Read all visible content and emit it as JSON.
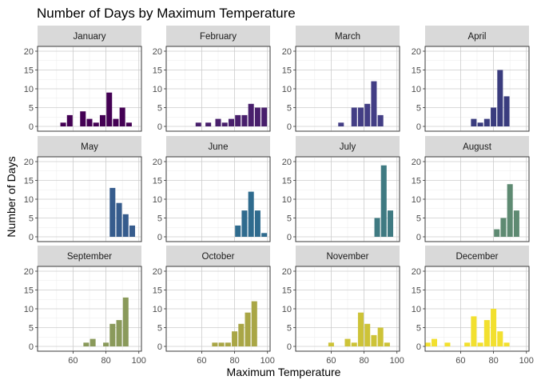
{
  "chart_data": {
    "type": "bar",
    "title": "Number of Days by Maximum Temperature",
    "xlabel": "Maximum Temperature",
    "ylabel": "Number of Days",
    "facet_layout": "4 columns x 3 rows, shared axes",
    "xlim": [
      40,
      100
    ],
    "ylim": [
      0,
      20
    ],
    "x_ticks": [
      60,
      80,
      100
    ],
    "y_ticks": [
      0,
      5,
      10,
      15,
      20
    ],
    "bin_width": 4,
    "grid": true,
    "panels": [
      {
        "label": "January",
        "color": "#440154",
        "bins": [
          {
            "x": 54,
            "value": 1
          },
          {
            "x": 58,
            "value": 3
          },
          {
            "x": 62,
            "value": 0
          },
          {
            "x": 66,
            "value": 4
          },
          {
            "x": 70,
            "value": 2
          },
          {
            "x": 74,
            "value": 1
          },
          {
            "x": 78,
            "value": 3
          },
          {
            "x": 82,
            "value": 9
          },
          {
            "x": 86,
            "value": 2
          },
          {
            "x": 90,
            "value": 5
          },
          {
            "x": 94,
            "value": 1
          }
        ]
      },
      {
        "label": "February",
        "color": "#481F6C",
        "bins": [
          {
            "x": 58,
            "value": 1
          },
          {
            "x": 64,
            "value": 1
          },
          {
            "x": 70,
            "value": 2
          },
          {
            "x": 74,
            "value": 1
          },
          {
            "x": 78,
            "value": 2
          },
          {
            "x": 82,
            "value": 3
          },
          {
            "x": 86,
            "value": 3
          },
          {
            "x": 90,
            "value": 6
          },
          {
            "x": 94,
            "value": 5
          },
          {
            "x": 98,
            "value": 5
          }
        ]
      },
      {
        "label": "March",
        "color": "#433E85",
        "bins": [
          {
            "x": 66,
            "value": 1
          },
          {
            "x": 74,
            "value": 5
          },
          {
            "x": 78,
            "value": 5
          },
          {
            "x": 82,
            "value": 6
          },
          {
            "x": 86,
            "value": 12
          },
          {
            "x": 90,
            "value": 3
          }
        ]
      },
      {
        "label": "April",
        "color": "#3A3C7E",
        "bins": [
          {
            "x": 68,
            "value": 2
          },
          {
            "x": 72,
            "value": 1
          },
          {
            "x": 76,
            "value": 2
          },
          {
            "x": 80,
            "value": 5
          },
          {
            "x": 84,
            "value": 15
          },
          {
            "x": 88,
            "value": 8
          }
        ]
      },
      {
        "label": "May",
        "color": "#365C8D",
        "bins": [
          {
            "x": 84,
            "value": 13
          },
          {
            "x": 88,
            "value": 9
          },
          {
            "x": 92,
            "value": 6
          },
          {
            "x": 96,
            "value": 3
          }
        ]
      },
      {
        "label": "June",
        "color": "#2F6B8E",
        "bins": [
          {
            "x": 82,
            "value": 3
          },
          {
            "x": 86,
            "value": 7
          },
          {
            "x": 90,
            "value": 12
          },
          {
            "x": 94,
            "value": 7
          },
          {
            "x": 98,
            "value": 1
          }
        ]
      },
      {
        "label": "July",
        "color": "#3F7A82",
        "bins": [
          {
            "x": 88,
            "value": 5
          },
          {
            "x": 92,
            "value": 19
          },
          {
            "x": 96,
            "value": 7
          }
        ]
      },
      {
        "label": "August",
        "color": "#5E8A72",
        "bins": [
          {
            "x": 82,
            "value": 2
          },
          {
            "x": 86,
            "value": 5
          },
          {
            "x": 90,
            "value": 14
          },
          {
            "x": 94,
            "value": 7
          }
        ]
      },
      {
        "label": "September",
        "color": "#8A9A5B",
        "bins": [
          {
            "x": 68,
            "value": 1
          },
          {
            "x": 72,
            "value": 2
          },
          {
            "x": 80,
            "value": 1
          },
          {
            "x": 84,
            "value": 6
          },
          {
            "x": 88,
            "value": 7
          },
          {
            "x": 92,
            "value": 13
          }
        ]
      },
      {
        "label": "October",
        "color": "#A9A646",
        "bins": [
          {
            "x": 68,
            "value": 1
          },
          {
            "x": 72,
            "value": 1
          },
          {
            "x": 76,
            "value": 1
          },
          {
            "x": 80,
            "value": 4
          },
          {
            "x": 84,
            "value": 6
          },
          {
            "x": 88,
            "value": 9
          },
          {
            "x": 92,
            "value": 12
          }
        ]
      },
      {
        "label": "November",
        "color": "#CDC338",
        "bins": [
          {
            "x": 60,
            "value": 1
          },
          {
            "x": 70,
            "value": 2
          },
          {
            "x": 74,
            "value": 1
          },
          {
            "x": 78,
            "value": 9
          },
          {
            "x": 82,
            "value": 6
          },
          {
            "x": 86,
            "value": 3
          },
          {
            "x": 90,
            "value": 5
          },
          {
            "x": 94,
            "value": 1
          }
        ]
      },
      {
        "label": "December",
        "color": "#F2E02F",
        "bins": [
          {
            "x": 40,
            "value": 1
          },
          {
            "x": 44,
            "value": 2
          },
          {
            "x": 52,
            "value": 1
          },
          {
            "x": 64,
            "value": 1
          },
          {
            "x": 68,
            "value": 8
          },
          {
            "x": 72,
            "value": 1
          },
          {
            "x": 76,
            "value": 7
          },
          {
            "x": 80,
            "value": 10
          },
          {
            "x": 84,
            "value": 4
          },
          {
            "x": 88,
            "value": 1
          }
        ]
      }
    ]
  }
}
